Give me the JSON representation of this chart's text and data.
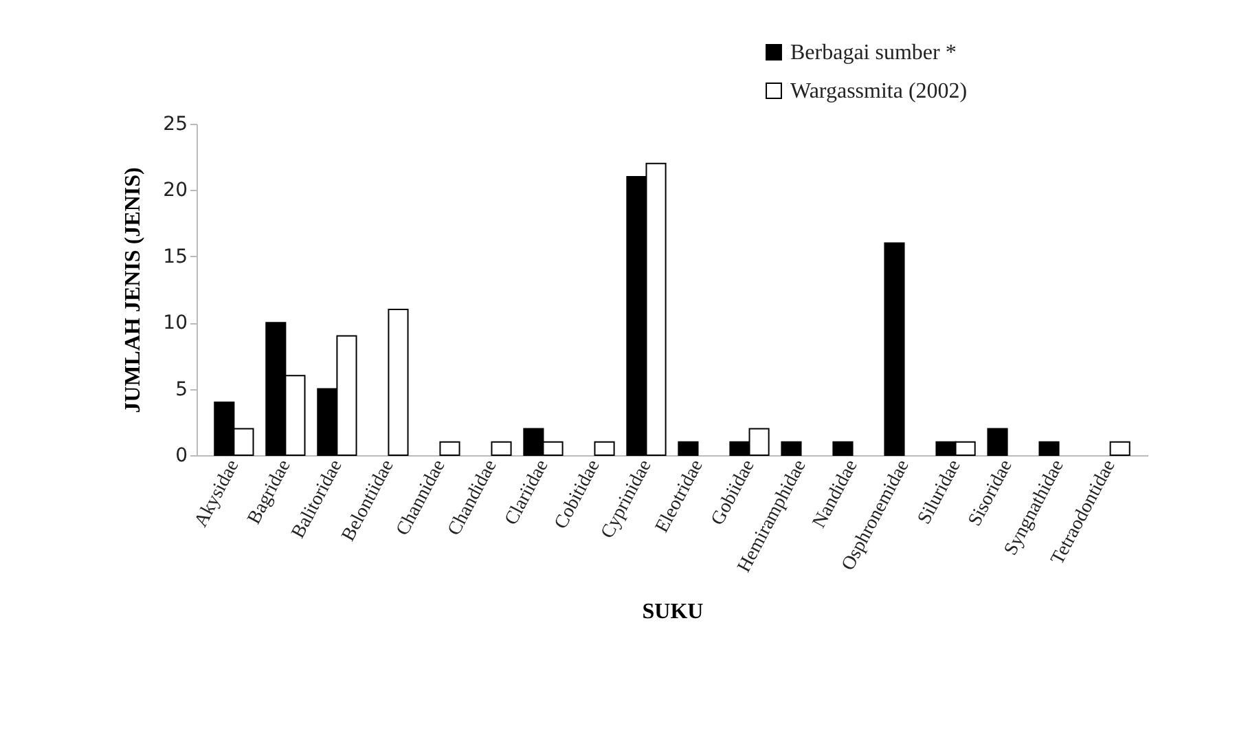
{
  "chart_data": {
    "type": "bar",
    "xlabel": "SUKU",
    "ylabel": "JUMLAH JENIS (JENIS)",
    "categories": [
      "Akysidae",
      "Bagridae",
      "Balitoridae",
      "Belontiidae",
      "Channidae",
      "Chandidae",
      "Clariidae",
      "Cobitidae",
      "Cyprinidae",
      "Eleotridae",
      "Gobiidae",
      "Hemiramphidae",
      "Nandidae",
      "Osphronemidae",
      "Siluridae",
      "Sisoridae",
      "Syngnathidae",
      "Tetraodontidae"
    ],
    "series": [
      {
        "name": "Berbagai sumber *",
        "color": "#000000",
        "values": [
          4,
          10,
          5,
          null,
          null,
          null,
          2,
          null,
          21,
          1,
          1,
          1,
          1,
          16,
          1,
          2,
          1,
          null
        ]
      },
      {
        "name": "Wargassmita (2002)",
        "color": "#ffffff",
        "values": [
          2,
          6,
          9,
          11,
          1,
          1,
          1,
          1,
          22,
          null,
          2,
          null,
          null,
          null,
          1,
          null,
          null,
          1
        ]
      }
    ],
    "ylim": [
      0,
      25
    ],
    "yticks": [
      0,
      5,
      10,
      15,
      20,
      25
    ],
    "grid": false,
    "legend": "top right"
  }
}
